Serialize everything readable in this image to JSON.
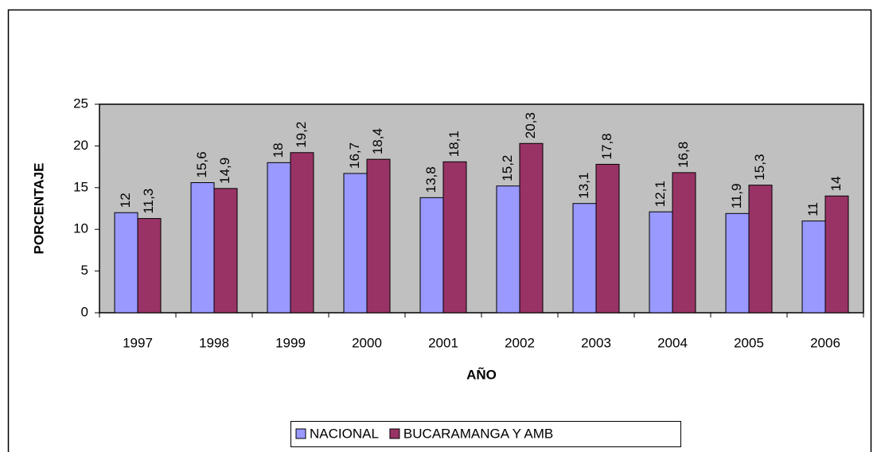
{
  "chart_data": {
    "type": "bar",
    "categories": [
      "1997",
      "1998",
      "1999",
      "2000",
      "2001",
      "2002",
      "2003",
      "2004",
      "2005",
      "2006"
    ],
    "series": [
      {
        "name": "NACIONAL",
        "color": "#9999ff",
        "values": [
          12,
          15.6,
          18,
          16.7,
          13.8,
          15.2,
          13.1,
          12.1,
          11.9,
          11
        ],
        "value_labels": [
          "12",
          "15,6",
          "18",
          "16,7",
          "13,8",
          "15,2",
          "13,1",
          "12,1",
          "11,9",
          "11"
        ]
      },
      {
        "name": "BUCARAMANGA Y AMB",
        "color": "#993366",
        "values": [
          11.3,
          14.9,
          19.2,
          18.4,
          18.1,
          20.3,
          17.8,
          16.8,
          15.3,
          14
        ],
        "value_labels": [
          "11,3",
          "14,9",
          "19,2",
          "18,4",
          "18,1",
          "20,3",
          "17,8",
          "16,8",
          "15,3",
          "14"
        ]
      }
    ],
    "xlabel": "AÑO",
    "ylabel": "PORCENTAJE",
    "ylim": [
      0,
      25
    ],
    "yticks": [
      0,
      5,
      10,
      15,
      20,
      25
    ],
    "legend": "bottom",
    "plot_background": "#c0c0c0"
  }
}
